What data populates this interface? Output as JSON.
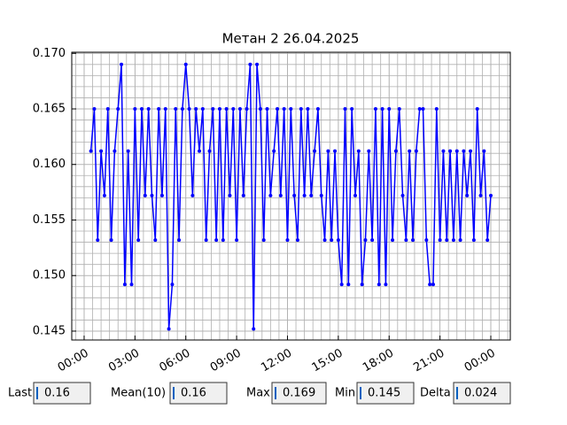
{
  "chart_data": {
    "type": "line",
    "title": "Метан 2 26.04.2025",
    "color": "#0000ff",
    "grid": true,
    "minor_grid": true,
    "xlim": [
      -0.73,
      25.15
    ],
    "ylim": [
      0.1442,
      0.1701
    ],
    "xticks": [
      {
        "value": 0,
        "label": "00:00"
      },
      {
        "value": 3,
        "label": "03:00"
      },
      {
        "value": 6,
        "label": "06:00"
      },
      {
        "value": 9,
        "label": "09:00"
      },
      {
        "value": 12,
        "label": "12:00"
      },
      {
        "value": 15,
        "label": "15:00"
      },
      {
        "value": 18,
        "label": "18:00"
      },
      {
        "value": 21,
        "label": "21:00"
      },
      {
        "value": 24,
        "label": "00:00"
      }
    ],
    "yticks": [
      0.145,
      {
        "value": 0.15,
        "label": "0.150"
      },
      0.155,
      {
        "value": 0.16,
        "label": "0.160"
      },
      0.165,
      {
        "value": 0.17,
        "label": "0.170"
      }
    ],
    "x": [
      0.4,
      0.6,
      0.8,
      1.0,
      1.2,
      1.4,
      1.6,
      1.8,
      2.0,
      2.2,
      2.4,
      2.6,
      2.8,
      3.0,
      3.2,
      3.4,
      3.6,
      3.8,
      4.0,
      4.2,
      4.4,
      4.6,
      4.8,
      5.0,
      5.2,
      5.4,
      5.6,
      5.8,
      6.0,
      6.2,
      6.4,
      6.6,
      6.8,
      7.0,
      7.2,
      7.4,
      7.6,
      7.8,
      8.0,
      8.2,
      8.4,
      8.6,
      8.8,
      9.0,
      9.2,
      9.4,
      9.6,
      9.8,
      10.0,
      10.2,
      10.4,
      10.6,
      10.8,
      11.0,
      11.2,
      11.4,
      11.6,
      11.8,
      12.0,
      12.2,
      12.4,
      12.6,
      12.8,
      13.0,
      13.2,
      13.4,
      13.6,
      13.8,
      14.0,
      14.2,
      14.4,
      14.6,
      14.8,
      15.0,
      15.2,
      15.4,
      15.6,
      15.8,
      16.0,
      16.2,
      16.4,
      16.6,
      16.8,
      17.0,
      17.2,
      17.4,
      17.6,
      17.8,
      18.0,
      18.2,
      18.4,
      18.6,
      18.8,
      19.0,
      19.2,
      19.4,
      19.6,
      19.8,
      20.0,
      20.2,
      20.4,
      20.6,
      20.8,
      21.0,
      21.2,
      21.4,
      21.6,
      21.8,
      22.0,
      22.2,
      22.4,
      22.6,
      22.8,
      23.0,
      23.2,
      23.4,
      23.6,
      23.8,
      24.0
    ],
    "values": [
      0.1612,
      0.165,
      0.1532,
      0.1612,
      0.1572,
      0.165,
      0.1532,
      0.1612,
      0.165,
      0.169,
      0.1492,
      0.1612,
      0.1492,
      0.165,
      0.1532,
      0.165,
      0.1572,
      0.165,
      0.1572,
      0.1532,
      0.165,
      0.1572,
      0.165,
      0.1452,
      0.1492,
      0.165,
      0.1532,
      0.165,
      0.169,
      0.165,
      0.1572,
      0.165,
      0.1612,
      0.165,
      0.1532,
      0.1612,
      0.165,
      0.1532,
      0.165,
      0.1532,
      0.165,
      0.1572,
      0.165,
      0.1532,
      0.165,
      0.1572,
      0.165,
      0.169,
      0.1452,
      0.169,
      0.165,
      0.1532,
      0.165,
      0.1572,
      0.1612,
      0.165,
      0.1572,
      0.165,
      0.1532,
      0.165,
      0.1572,
      0.1532,
      0.165,
      0.1572,
      0.165,
      0.1572,
      0.1612,
      0.165,
      0.1572,
      0.1532,
      0.1612,
      0.1532,
      0.1612,
      0.1532,
      0.1492,
      0.165,
      0.1492,
      0.165,
      0.1572,
      0.1612,
      0.1492,
      0.1532,
      0.1612,
      0.1532,
      0.165,
      0.1492,
      0.165,
      0.1492,
      0.165,
      0.1532,
      0.1612,
      0.165,
      0.1572,
      0.1532,
      0.1612,
      0.1532,
      0.1612,
      0.165,
      0.165,
      0.1532,
      0.1492,
      0.1492,
      0.165,
      0.1532,
      0.1612,
      0.1532,
      0.1612,
      0.1532,
      0.1612,
      0.1532,
      0.1612,
      0.1572,
      0.1612,
      0.1532,
      0.165,
      0.1572,
      0.1612,
      0.1532,
      0.1572
    ]
  },
  "stats": [
    {
      "label": "Last",
      "value": 0.16
    },
    {
      "label": "Mean(10)",
      "value": 0.16
    },
    {
      "label": "Max",
      "value": 0.169
    },
    {
      "label": "Min",
      "value": 0.145
    },
    {
      "label": "Delta",
      "value": 0.024
    }
  ]
}
